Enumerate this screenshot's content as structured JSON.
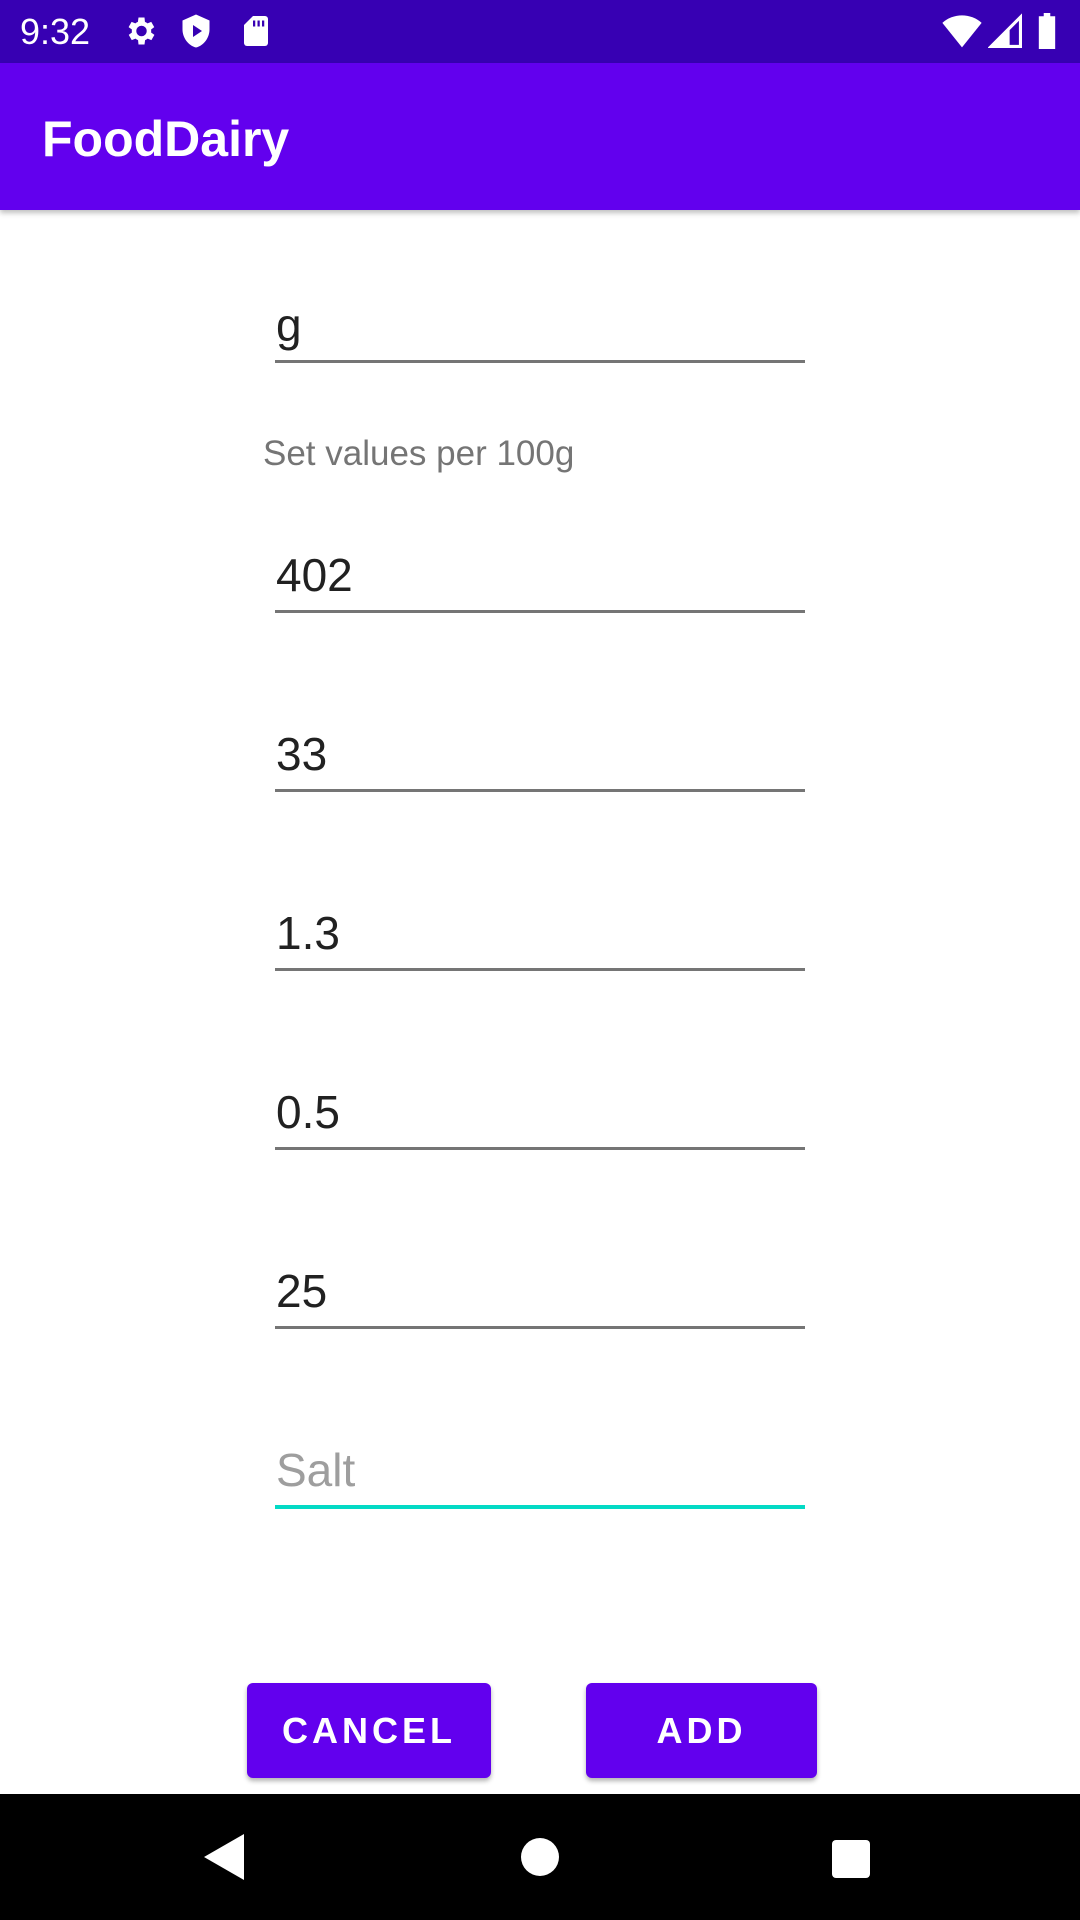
{
  "status_bar": {
    "time": "9:32",
    "left_icons": [
      "settings-icon",
      "shield-play-icon",
      "sd-card-icon"
    ],
    "right_icons": [
      "wifi-icon",
      "cell-signal-icon",
      "battery-icon"
    ]
  },
  "app_bar": {
    "title": "FoodDairy"
  },
  "form": {
    "unit_field": {
      "value": "g"
    },
    "hint": "Set values per 100g",
    "fields": [
      {
        "value": "402"
      },
      {
        "value": "33"
      },
      {
        "value": "1.3"
      },
      {
        "value": "0.5"
      },
      {
        "value": "25"
      },
      {
        "value": "",
        "placeholder": "Salt",
        "focused": true
      }
    ]
  },
  "buttons": {
    "cancel": "CANCEL",
    "add": "ADD"
  },
  "nav_bar": {
    "icons": [
      "back-icon",
      "home-icon",
      "recents-icon"
    ]
  },
  "colors": {
    "status_bar": "#3700b3",
    "primary": "#6200ee",
    "accent": "#03dac5"
  }
}
